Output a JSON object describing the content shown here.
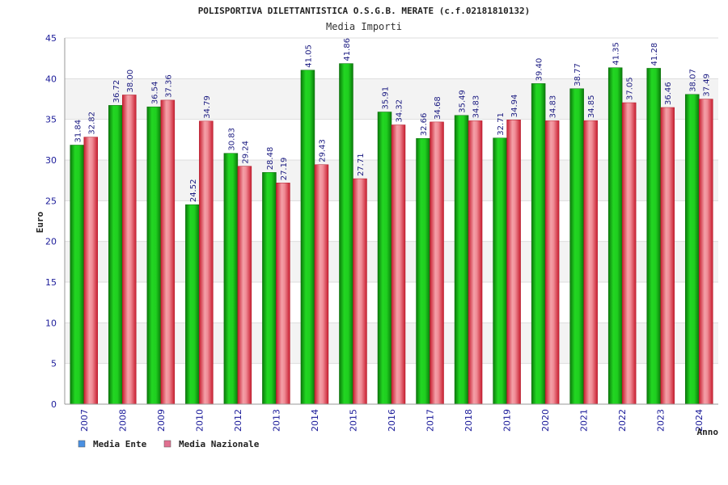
{
  "chart_data": {
    "type": "bar",
    "title": "POLISPORTIVA DILETTANTISTICA O.S.G.B. MERATE (c.f.02181810132)",
    "subtitle": "Media Importi",
    "ylabel": "Euro",
    "xlabel": "Anno",
    "ylim": [
      0,
      45
    ],
    "yticks": [
      "0",
      "5",
      "10",
      "15",
      "20",
      "25",
      "30",
      "35",
      "40",
      "45"
    ],
    "grid": true,
    "legend_position": "bottom-left",
    "categories": [
      "2007",
      "2008",
      "2009",
      "2010",
      "2012",
      "2013",
      "2014",
      "2015",
      "2016",
      "2017",
      "2018",
      "2019",
      "2020",
      "2021",
      "2022",
      "2023",
      "2024"
    ],
    "series": [
      {
        "name": "Media Ente",
        "bar_color": "#14b814",
        "legend_color": "#4a90e2",
        "values": [
          31.84,
          36.72,
          36.54,
          24.52,
          30.83,
          28.48,
          41.05,
          41.86,
          35.91,
          32.66,
          35.49,
          32.71,
          39.4,
          38.77,
          41.35,
          41.28,
          38.07
        ],
        "labels": [
          "31.84",
          "36.72",
          "36.54",
          "24.52",
          "30.83",
          "28.48",
          "41.05",
          "41.86",
          "35.91",
          "32.66",
          "35.49",
          "32.71",
          "39.40",
          "38.77",
          "41.35",
          "41.28",
          "38.07"
        ]
      },
      {
        "name": "Media Nazionale",
        "bar_color": "#e8384a",
        "legend_color": "#e07090",
        "values": [
          32.82,
          38.0,
          37.36,
          34.79,
          29.24,
          27.19,
          29.43,
          27.71,
          34.32,
          34.68,
          34.83,
          34.94,
          34.83,
          34.85,
          37.05,
          36.46,
          37.49
        ],
        "labels": [
          "32.82",
          "38.00",
          "37.36",
          "34.79",
          "29.24",
          "27.19",
          "29.43",
          "27.71",
          "34.32",
          "34.68",
          "34.83",
          "34.94",
          "34.83",
          "34.85",
          "37.05",
          "36.46",
          "37.49"
        ]
      }
    ]
  }
}
